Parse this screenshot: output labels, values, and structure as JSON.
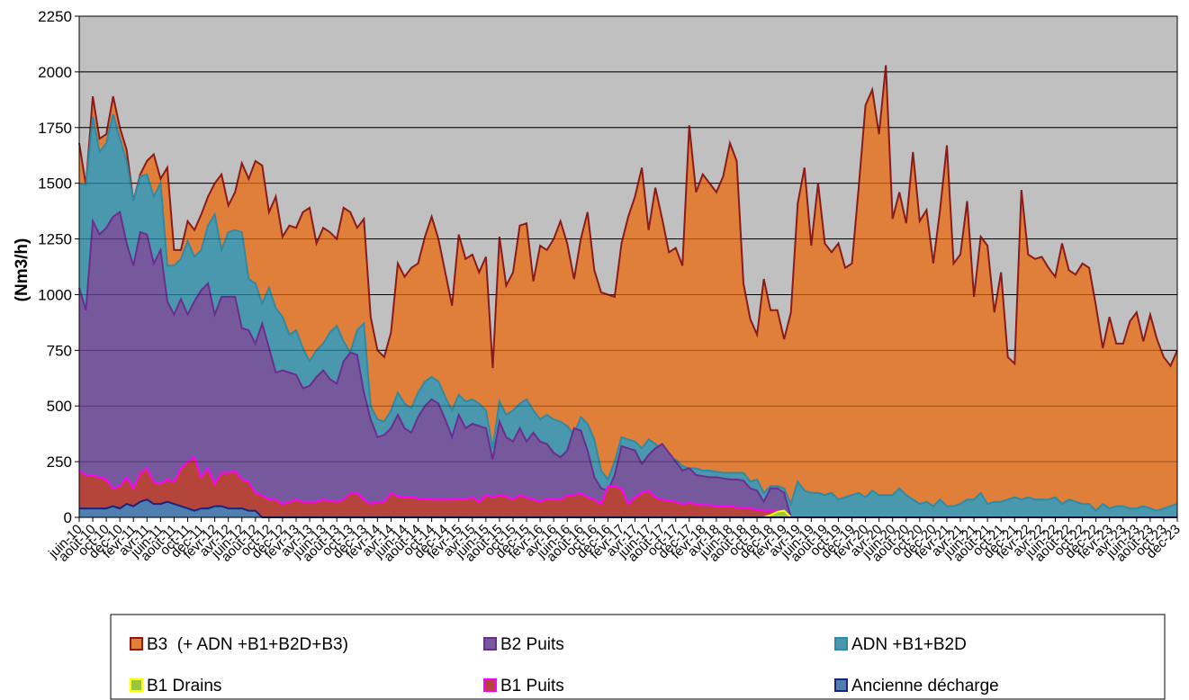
{
  "chart_data": {
    "type": "area",
    "y_label": "(Nm3/h)",
    "ylim": [
      0,
      2250
    ],
    "yticks": [
      0,
      250,
      500,
      750,
      1000,
      1250,
      1500,
      1750,
      2000,
      2250
    ],
    "grid": true,
    "background": "#c0c0c0",
    "categories": [
      "juin-10",
      null,
      "août-10",
      null,
      "oct-10",
      null,
      "déc-10",
      null,
      "févr-11",
      null,
      "avr-11",
      null,
      "juin-11",
      null,
      "août-11",
      null,
      "oct-11",
      null,
      "déc-11",
      null,
      "févr-12",
      null,
      "avr-12",
      null,
      "juin-12",
      null,
      "août-12",
      null,
      "oct-12",
      null,
      "déc-12",
      null,
      "févr-13",
      null,
      "avr-13",
      null,
      "juin-13",
      null,
      "août-13",
      null,
      "oct-13",
      null,
      "déc-13",
      null,
      "févr-14",
      null,
      "avr-14",
      null,
      "juin-14",
      null,
      "août-14",
      null,
      "oct-14",
      null,
      "déc-14",
      null,
      "févr-15",
      null,
      "avr-15",
      null,
      "juin-15",
      null,
      "août-15",
      null,
      "oct-15",
      null,
      "déc-15",
      null,
      "févr-16",
      null,
      "avr-16",
      null,
      "juin-16",
      null,
      "août-16",
      null,
      "oct-16",
      null,
      "déc-16",
      null,
      "févr-17",
      null,
      "avr-17",
      null,
      "juin-17",
      null,
      "août-17",
      null,
      "oct-17",
      null,
      "déc-17",
      null,
      "févr-18",
      null,
      "avr-18",
      null,
      "juin-18",
      null,
      "août-18",
      null,
      "oct-18",
      null,
      "déc-18",
      null,
      "févr-19",
      null,
      "avr-19",
      null,
      "juin-19",
      null,
      "août-19",
      null,
      "oct-19",
      null,
      "déc-19",
      null,
      "févr-20",
      null,
      "avr-20",
      null,
      "juin-20",
      null,
      "août-20",
      null,
      "oct-20",
      null,
      "déc-20",
      null,
      "févr-21",
      null,
      "avr-21",
      null,
      "juin-21",
      null,
      "août-21",
      null,
      "oct-21",
      null,
      "déc-21",
      null,
      "févr-22",
      null,
      "avr-22",
      null,
      "juin-22",
      null,
      "août-22",
      null,
      "oct-22",
      null,
      "déc-22",
      null,
      "févr-23",
      null,
      "avr-23",
      null,
      "juin-23",
      null,
      "août-23",
      null,
      "oct-23",
      null,
      "déc-23"
    ],
    "series": [
      {
        "name": "B3  (+ ADN +B1+B2D+B3)",
        "color": "#e07f3a",
        "line": "#8b1a1a",
        "values": [
          1680,
          1490,
          1890,
          1700,
          1720,
          1890,
          1750,
          1650,
          1420,
          1540,
          1600,
          1630,
          1520,
          1570,
          1200,
          1200,
          1330,
          1290,
          1360,
          1440,
          1500,
          1540,
          1400,
          1460,
          1590,
          1520,
          1600,
          1580,
          1370,
          1440,
          1260,
          1310,
          1300,
          1370,
          1390,
          1230,
          1300,
          1280,
          1250,
          1390,
          1370,
          1300,
          1340,
          900,
          750,
          720,
          830,
          1140,
          1080,
          1120,
          1140,
          1260,
          1350,
          1250,
          1100,
          950,
          1270,
          1160,
          1180,
          1100,
          1170,
          670,
          1260,
          1040,
          1100,
          1310,
          1320,
          1060,
          1220,
          1200,
          1250,
          1330,
          1230,
          1070,
          1250,
          1370,
          1110,
          1010,
          1000,
          990,
          1230,
          1350,
          1440,
          1570,
          1290,
          1480,
          1340,
          1190,
          1210,
          1130,
          1760,
          1460,
          1540,
          1500,
          1460,
          1530,
          1680,
          1600,
          1050,
          890,
          820,
          1070,
          930,
          930,
          800,
          920,
          1410,
          1570,
          1220,
          1500,
          1230,
          1190,
          1230,
          1120,
          1140,
          1480,
          1850,
          1920,
          1720,
          2030,
          1340,
          1460,
          1320,
          1640,
          1330,
          1380,
          1140,
          1380,
          1670,
          1140,
          1180,
          1420,
          990,
          1260,
          1220,
          920,
          1100,
          720,
          690,
          1470,
          1180,
          1160,
          1170,
          1120,
          1080,
          1230,
          1110,
          1090,
          1140,
          1120,
          950,
          760,
          900,
          780,
          780,
          880,
          920,
          790,
          910,
          800,
          720,
          680,
          750
        ]
      },
      {
        "name": "ADN +B1+B2D",
        "color": "#4a98ae",
        "line": "#2f8aa3",
        "values": [
          1500,
          1490,
          1800,
          1640,
          1680,
          1810,
          1700,
          1600,
          1420,
          1530,
          1540,
          1440,
          1500,
          1130,
          1130,
          1160,
          1240,
          1170,
          1200,
          1310,
          1360,
          1200,
          1280,
          1290,
          1280,
          1070,
          1050,
          960,
          1030,
          940,
          900,
          820,
          840,
          760,
          700,
          750,
          780,
          830,
          860,
          790,
          740,
          840,
          870,
          500,
          440,
          430,
          480,
          560,
          510,
          490,
          560,
          610,
          630,
          610,
          540,
          480,
          550,
          520,
          530,
          510,
          480,
          310,
          520,
          460,
          480,
          510,
          530,
          480,
          440,
          460,
          440,
          430,
          410,
          370,
          450,
          420,
          350,
          210,
          170,
          250,
          360,
          350,
          340,
          310,
          350,
          330,
          300,
          240,
          260,
          230,
          220,
          220,
          210,
          210,
          205,
          200,
          200,
          200,
          200,
          160,
          170,
          110,
          140,
          140,
          130,
          60,
          160,
          120,
          110,
          110,
          100,
          110,
          80,
          90,
          100,
          110,
          90,
          120,
          100,
          100,
          100,
          130,
          100,
          80,
          60,
          70,
          50,
          80,
          50,
          50,
          60,
          80,
          80,
          110,
          60,
          70,
          70,
          80,
          90,
          80,
          90,
          80,
          80,
          80,
          90,
          60,
          80,
          70,
          60,
          60,
          30,
          60,
          40,
          50,
          50,
          40,
          40,
          50,
          40,
          30,
          40,
          50,
          60
        ]
      },
      {
        "name": "B2 Puits",
        "color": "#76599c",
        "line": "#6b2d90",
        "values": [
          1030,
          930,
          1330,
          1270,
          1300,
          1350,
          1370,
          1230,
          1130,
          1280,
          1270,
          1140,
          1200,
          970,
          910,
          980,
          910,
          970,
          1020,
          1050,
          910,
          990,
          990,
          990,
          850,
          840,
          780,
          870,
          760,
          650,
          660,
          650,
          640,
          580,
          590,
          630,
          660,
          620,
          600,
          700,
          740,
          730,
          560,
          440,
          360,
          370,
          400,
          460,
          400,
          380,
          450,
          500,
          530,
          510,
          440,
          360,
          460,
          400,
          420,
          410,
          400,
          260,
          430,
          360,
          340,
          400,
          340,
          380,
          340,
          330,
          290,
          270,
          300,
          400,
          390,
          300,
          180,
          130,
          120,
          190,
          320,
          310,
          300,
          240,
          280,
          310,
          330,
          290,
          250,
          210,
          220,
          190,
          185,
          180,
          180,
          175,
          170,
          170,
          165,
          130,
          120,
          70,
          130,
          130,
          110,
          0,
          0,
          0,
          0,
          0,
          0,
          0,
          0,
          0,
          0,
          0,
          0,
          0,
          0,
          0,
          0,
          0,
          0,
          0,
          0,
          0,
          0,
          0,
          0,
          0,
          0,
          0,
          0,
          0,
          0,
          0,
          0,
          0,
          0,
          0,
          0,
          0,
          0,
          0,
          0,
          0,
          0,
          0,
          0,
          0,
          0,
          0,
          0,
          0,
          0,
          0,
          0,
          0,
          0,
          0,
          0,
          0,
          0
        ]
      },
      {
        "name": "B1 Puits",
        "color": "#b5453b",
        "line": "#ff00ff",
        "values": [
          210,
          190,
          190,
          180,
          170,
          130,
          140,
          180,
          130,
          200,
          220,
          160,
          150,
          170,
          160,
          220,
          250,
          270,
          180,
          220,
          150,
          200,
          200,
          210,
          170,
          160,
          110,
          100,
          80,
          80,
          60,
          70,
          80,
          70,
          70,
          70,
          80,
          75,
          70,
          80,
          110,
          110,
          80,
          60,
          70,
          70,
          110,
          95,
          90,
          90,
          85,
          85,
          80,
          80,
          80,
          80,
          85,
          80,
          90,
          70,
          100,
          90,
          100,
          95,
          80,
          100,
          90,
          80,
          70,
          85,
          80,
          80,
          100,
          100,
          110,
          90,
          80,
          60,
          140,
          140,
          130,
          60,
          90,
          110,
          120,
          90,
          80,
          75,
          70,
          60,
          65,
          60,
          55,
          55,
          50,
          50,
          50,
          45,
          45,
          40,
          35,
          30,
          30,
          30,
          20,
          0,
          0,
          0,
          0,
          0,
          0,
          0,
          0,
          0,
          0,
          0,
          0,
          0,
          0,
          0,
          0,
          0,
          0,
          0,
          0,
          0,
          0,
          0,
          0,
          0,
          0,
          0,
          0,
          0,
          0,
          0,
          0,
          0,
          0,
          0,
          0,
          0,
          0,
          0,
          0,
          0,
          0,
          0,
          0,
          0,
          0,
          0,
          0,
          0,
          0,
          0,
          0,
          0,
          0,
          0,
          0,
          0,
          0
        ]
      },
      {
        "name": "B1 Drains",
        "color": "#9cc43c",
        "line": "#ffff00",
        "values": [
          0,
          0,
          0,
          0,
          0,
          0,
          0,
          0,
          0,
          0,
          0,
          0,
          0,
          0,
          0,
          0,
          0,
          0,
          0,
          0,
          0,
          0,
          0,
          0,
          0,
          0,
          0,
          0,
          0,
          0,
          0,
          0,
          0,
          0,
          0,
          0,
          0,
          0,
          0,
          0,
          0,
          0,
          0,
          0,
          0,
          0,
          0,
          0,
          0,
          0,
          0,
          0,
          0,
          0,
          0,
          0,
          0,
          0,
          0,
          0,
          0,
          0,
          0,
          0,
          0,
          0,
          0,
          0,
          0,
          0,
          0,
          0,
          0,
          0,
          0,
          0,
          0,
          0,
          0,
          0,
          0,
          0,
          0,
          0,
          0,
          0,
          0,
          0,
          0,
          0,
          0,
          0,
          0,
          0,
          0,
          0,
          0,
          0,
          0,
          0,
          0,
          0,
          10,
          25,
          30,
          0,
          0,
          0,
          0,
          0,
          0,
          0,
          0,
          0,
          0,
          0,
          0,
          0,
          0,
          0,
          0,
          0,
          0,
          0,
          0,
          0,
          0,
          0,
          0,
          0,
          0,
          0,
          0,
          0,
          0,
          0,
          0,
          0,
          0,
          0,
          0,
          0,
          0,
          0,
          0,
          0,
          0,
          0,
          0,
          0,
          0,
          0,
          0,
          0,
          0,
          0,
          0,
          0,
          0,
          0,
          0,
          0,
          0
        ]
      },
      {
        "name": "Ancienne décharge",
        "color": "#4f7fb0",
        "line": "#1a237e",
        "values": [
          40,
          40,
          40,
          40,
          40,
          50,
          40,
          60,
          50,
          70,
          80,
          60,
          60,
          70,
          60,
          50,
          40,
          30,
          40,
          40,
          50,
          50,
          40,
          40,
          40,
          30,
          30,
          0,
          0,
          0,
          0,
          0,
          0,
          0,
          0,
          0,
          0,
          0,
          0,
          0,
          0,
          0,
          0,
          0,
          0,
          0,
          0,
          0,
          0,
          0,
          0,
          0,
          0,
          0,
          0,
          0,
          0,
          0,
          0,
          0,
          0,
          0,
          0,
          0,
          0,
          0,
          0,
          0,
          0,
          0,
          0,
          0,
          0,
          0,
          0,
          0,
          0,
          0,
          0,
          0,
          0,
          0,
          0,
          0,
          0,
          0,
          0,
          0,
          0,
          0,
          0,
          0,
          0,
          0,
          0,
          0,
          0,
          0,
          0,
          0,
          0,
          0,
          0,
          0,
          0,
          0,
          0,
          0,
          0,
          0,
          0,
          0,
          0,
          0,
          0,
          0,
          0,
          0,
          0,
          0,
          0,
          0,
          0,
          0,
          0,
          0,
          0,
          0,
          0,
          0,
          0,
          0,
          0,
          0,
          0,
          0,
          0,
          0,
          0,
          0,
          0,
          0,
          0,
          0,
          0,
          0,
          0,
          0,
          0,
          0,
          0,
          0,
          0,
          0,
          0,
          0,
          0,
          0,
          0,
          0,
          0,
          0,
          0
        ]
      }
    ]
  }
}
